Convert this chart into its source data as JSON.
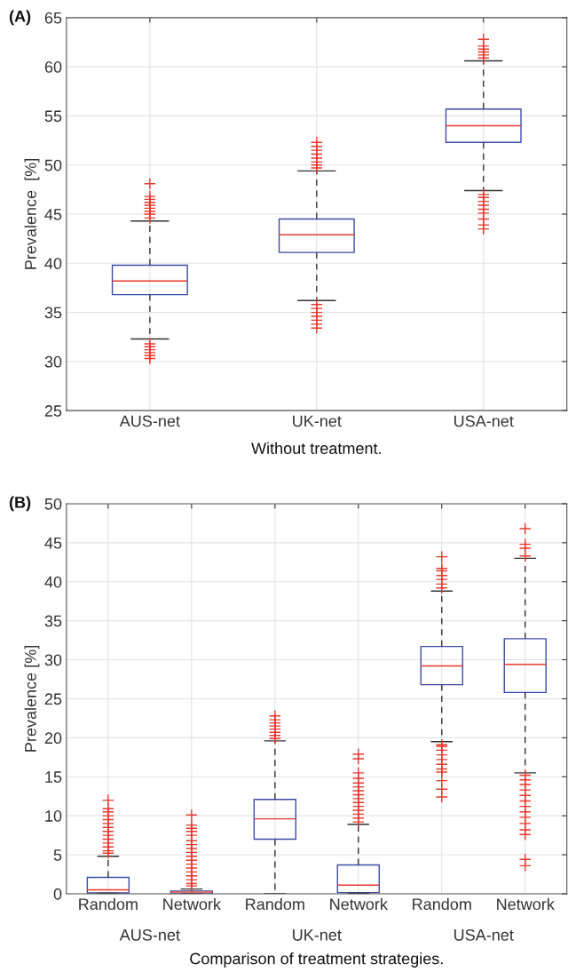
{
  "chart_data": [
    {
      "type": "box",
      "title": "(A)",
      "ylabel": "Prevalence  [%]",
      "xlabel": "Without treatment.",
      "categories": [
        "AUS-net",
        "UK-net",
        "USA-net"
      ],
      "boxes": [
        {
          "low": 32.3,
          "q1": 36.8,
          "median": 38.2,
          "q3": 39.8,
          "high": 44.3,
          "outliers": [
            30.3,
            30.6,
            30.9,
            31.2,
            31.5,
            31.8,
            44.6,
            45.0,
            45.3,
            45.6,
            45.9,
            46.2,
            46.5,
            46.8,
            48.1
          ]
        },
        {
          "low": 36.2,
          "q1": 41.1,
          "median": 42.9,
          "q3": 44.5,
          "high": 49.4,
          "outliers": [
            33.4,
            33.8,
            34.2,
            34.6,
            35.0,
            35.4,
            35.8,
            49.7,
            50.0,
            50.3,
            50.7,
            51.1,
            51.5,
            51.9,
            52.3
          ]
        },
        {
          "low": 47.4,
          "q1": 52.3,
          "median": 54.0,
          "q3": 55.7,
          "high": 60.6,
          "outliers": [
            43.5,
            43.9,
            44.5,
            45.1,
            45.5,
            45.9,
            46.3,
            46.7,
            47.0,
            60.9,
            61.2,
            61.5,
            61.8,
            62.1,
            62.8
          ]
        }
      ],
      "ylim": [
        25,
        65
      ],
      "yticks": [
        25,
        30,
        35,
        40,
        45,
        50,
        55,
        60,
        65
      ],
      "grid": true
    },
    {
      "type": "box",
      "title": "(B)",
      "ylabel": "Prevalence [%]",
      "xlabel": "Comparison of treatment strategies.",
      "categories": [
        "Random",
        "Network",
        "Random",
        "Network",
        "Random",
        "Network"
      ],
      "annotations": [
        "AUS-net",
        "UK-net",
        "USA-net"
      ],
      "boxes": [
        {
          "low": 0.05,
          "q1": 0.1,
          "median": 0.5,
          "q3": 2.1,
          "high": 4.8,
          "outliers": [
            5.2,
            5.5,
            6.0,
            6.5,
            7.0,
            7.5,
            8.0,
            8.5,
            9.0,
            9.5,
            10.0,
            10.5,
            10.9,
            12.0
          ]
        },
        {
          "low": 0.0,
          "q1": 0.0,
          "median": 0.2,
          "q3": 0.35,
          "high": 0.6,
          "outliers": [
            1.0,
            1.3,
            1.8,
            2.3,
            2.8,
            3.3,
            3.8,
            4.3,
            4.8,
            5.3,
            5.8,
            6.3,
            6.8,
            7.5,
            8.0,
            8.4,
            8.8,
            10.1
          ]
        },
        {
          "low": 0.0,
          "q1": 7.0,
          "median": 9.6,
          "q3": 12.1,
          "high": 19.6,
          "outliers": [
            19.9,
            20.3,
            20.7,
            21.1,
            21.5,
            21.9,
            22.3,
            22.8
          ]
        },
        {
          "low": 0.05,
          "q1": 0.15,
          "median": 1.1,
          "q3": 3.7,
          "high": 8.9,
          "outliers": [
            9.2,
            9.7,
            10.2,
            10.7,
            11.2,
            11.7,
            12.2,
            12.7,
            13.2,
            13.7,
            14.2,
            14.8,
            15.5,
            17.3,
            17.9
          ]
        },
        {
          "low": 19.5,
          "q1": 26.8,
          "median": 29.2,
          "q3": 31.7,
          "high": 38.8,
          "outliers": [
            12.4,
            13.4,
            14.5,
            15.6,
            16.0,
            16.6,
            17.2,
            17.8,
            18.4,
            18.9,
            19.1,
            39.2,
            39.7,
            40.3,
            40.8,
            41.4,
            41.7,
            43.2
          ]
        },
        {
          "low": 15.5,
          "q1": 25.8,
          "median": 29.4,
          "q3": 32.7,
          "high": 43.0,
          "outliers": [
            3.6,
            4.4,
            7.6,
            8.2,
            9.0,
            9.8,
            10.5,
            11.2,
            11.9,
            12.6,
            13.3,
            14.0,
            14.6,
            15.2,
            43.3,
            44.3,
            44.8,
            46.8
          ]
        }
      ],
      "ylim": [
        0,
        50
      ],
      "yticks": [
        0,
        5,
        10,
        15,
        20,
        25,
        30,
        35,
        40,
        45,
        50
      ],
      "grid": true
    }
  ]
}
